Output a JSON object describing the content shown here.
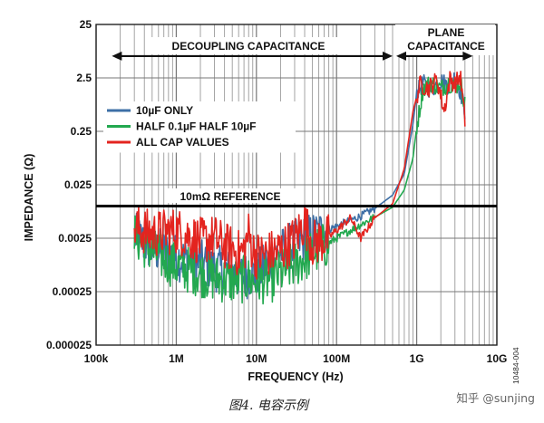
{
  "chart_data": {
    "type": "line",
    "xlabel": "FREQUENCY (Hz)",
    "ylabel": "IMPEDANCE (Ω)",
    "x_scale": "log",
    "y_scale": "log",
    "xlim": [
      100000,
      10000000000
    ],
    "ylim": [
      2.5e-05,
      25
    ],
    "x_ticks": [
      {
        "value": 100000,
        "label": "100k"
      },
      {
        "value": 1000000,
        "label": "1M"
      },
      {
        "value": 10000000,
        "label": "10M"
      },
      {
        "value": 100000000,
        "label": "100M"
      },
      {
        "value": 1000000000,
        "label": "1G"
      },
      {
        "value": 10000000000,
        "label": "10G"
      }
    ],
    "y_ticks": [
      {
        "value": 25,
        "label": "25"
      },
      {
        "value": 2.5,
        "label": "2.5"
      },
      {
        "value": 0.25,
        "label": "0.25"
      },
      {
        "value": 0.025,
        "label": "0.025"
      },
      {
        "value": 0.0025,
        "label": "0.0025"
      },
      {
        "value": 0.00025,
        "label": "0.00025"
      },
      {
        "value": 2.5e-05,
        "label": "0.000025"
      }
    ],
    "grid": true,
    "legend": "left",
    "series": [
      {
        "name": "10µF ONLY",
        "color": "#3d6fa6",
        "points": [
          [
            300000,
            0.0028
          ],
          [
            500000,
            0.0016
          ],
          [
            1000000,
            0.0011
          ],
          [
            2000000,
            0.00085
          ],
          [
            3000000,
            0.0007
          ],
          [
            5000000,
            0.00055
          ],
          [
            7000000,
            0.0005
          ],
          [
            10000000,
            0.00055
          ],
          [
            15000000,
            0.0009
          ],
          [
            20000000,
            0.0014
          ],
          [
            30000000,
            0.002
          ],
          [
            50000000,
            0.0028
          ],
          [
            100000000,
            0.0042
          ],
          [
            200000000,
            0.0065
          ],
          [
            300000000,
            0.009
          ],
          [
            500000000,
            0.016
          ],
          [
            700000000,
            0.04
          ],
          [
            900000000,
            0.35
          ],
          [
            1000000000,
            1.3
          ],
          [
            1200000000,
            2.0
          ],
          [
            1500000000,
            1.5
          ],
          [
            2000000000,
            2.2
          ],
          [
            2500000000,
            1.8
          ],
          [
            3000000000,
            2.6
          ],
          [
            3500000000,
            1.4
          ],
          [
            4000000000,
            0.6
          ]
        ]
      },
      {
        "name": "HALF 0.1µF HALF 10µF",
        "color": "#22a84f",
        "points": [
          [
            300000,
            0.0028
          ],
          [
            500000,
            0.0014
          ],
          [
            1000000,
            0.00075
          ],
          [
            2000000,
            0.00055
          ],
          [
            3000000,
            0.00045
          ],
          [
            5000000,
            0.0004
          ],
          [
            7000000,
            0.00042
          ],
          [
            10000000,
            0.0004
          ],
          [
            15000000,
            0.00042
          ],
          [
            20000000,
            0.00055
          ],
          [
            30000000,
            0.0008
          ],
          [
            50000000,
            0.0013
          ],
          [
            100000000,
            0.0025
          ],
          [
            200000000,
            0.0045
          ],
          [
            300000000,
            0.0062
          ],
          [
            500000000,
            0.0095
          ],
          [
            700000000,
            0.02
          ],
          [
            900000000,
            0.08
          ],
          [
            1000000000,
            0.3
          ],
          [
            1200000000,
            1.6
          ],
          [
            1500000000,
            2.0
          ],
          [
            2000000000,
            1.6
          ],
          [
            2500000000,
            2.0
          ],
          [
            3000000000,
            1.7
          ],
          [
            3500000000,
            2.1
          ],
          [
            4000000000,
            0.8
          ]
        ]
      },
      {
        "name": "ALL CAP VALUES",
        "color": "#e3241f",
        "points": [
          [
            300000,
            0.004
          ],
          [
            500000,
            0.003
          ],
          [
            1000000,
            0.0035
          ],
          [
            2000000,
            0.0022
          ],
          [
            3000000,
            0.0025
          ],
          [
            4000000,
            0.0018
          ],
          [
            5000000,
            0.0016
          ],
          [
            6000000,
            0.0013
          ],
          [
            7000000,
            0.0015
          ],
          [
            8000000,
            0.003
          ],
          [
            9000000,
            0.0015
          ],
          [
            10000000,
            0.0012
          ],
          [
            15000000,
            0.0013
          ],
          [
            20000000,
            0.0015
          ],
          [
            30000000,
            0.0024
          ],
          [
            40000000,
            0.005
          ],
          [
            50000000,
            0.002
          ],
          [
            80000000,
            0.0026
          ],
          [
            100000000,
            0.0035
          ],
          [
            150000000,
            0.006
          ],
          [
            200000000,
            0.0025
          ],
          [
            300000000,
            0.006
          ],
          [
            500000000,
            0.011
          ],
          [
            700000000,
            0.05
          ],
          [
            900000000,
            0.6
          ],
          [
            1100000000,
            1.9
          ],
          [
            1400000000,
            1.6
          ],
          [
            1800000000,
            2.3
          ],
          [
            2200000000,
            0.6
          ],
          [
            2600000000,
            2.4
          ],
          [
            3000000000,
            1.9
          ],
          [
            3500000000,
            2.7
          ],
          [
            4000000000,
            0.4
          ]
        ]
      },
      {
        "name": "10mΩ REFERENCE",
        "color": "#000000",
        "points": [
          [
            100000,
            0.01
          ],
          [
            10000000000,
            0.01
          ]
        ]
      }
    ],
    "annotations": [
      {
        "text": "DECOUPLING CAPACITANCE",
        "x_range": [
          170000,
          500000000
        ],
        "y": 6.4
      },
      {
        "text": "PLANE",
        "x_range": [
          500000000,
          5000000000
        ],
        "y": 14
      },
      {
        "text": "CAPACITANCE",
        "x_range": [
          500000000,
          5000000000
        ],
        "y": 6.4
      },
      {
        "text": "10mΩ REFERENCE",
        "x": 4500000,
        "y": 0.0145
      }
    ],
    "figure_code": "10484-004",
    "caption": "图4. 电容示例",
    "watermark": "知乎 @sunjing"
  }
}
